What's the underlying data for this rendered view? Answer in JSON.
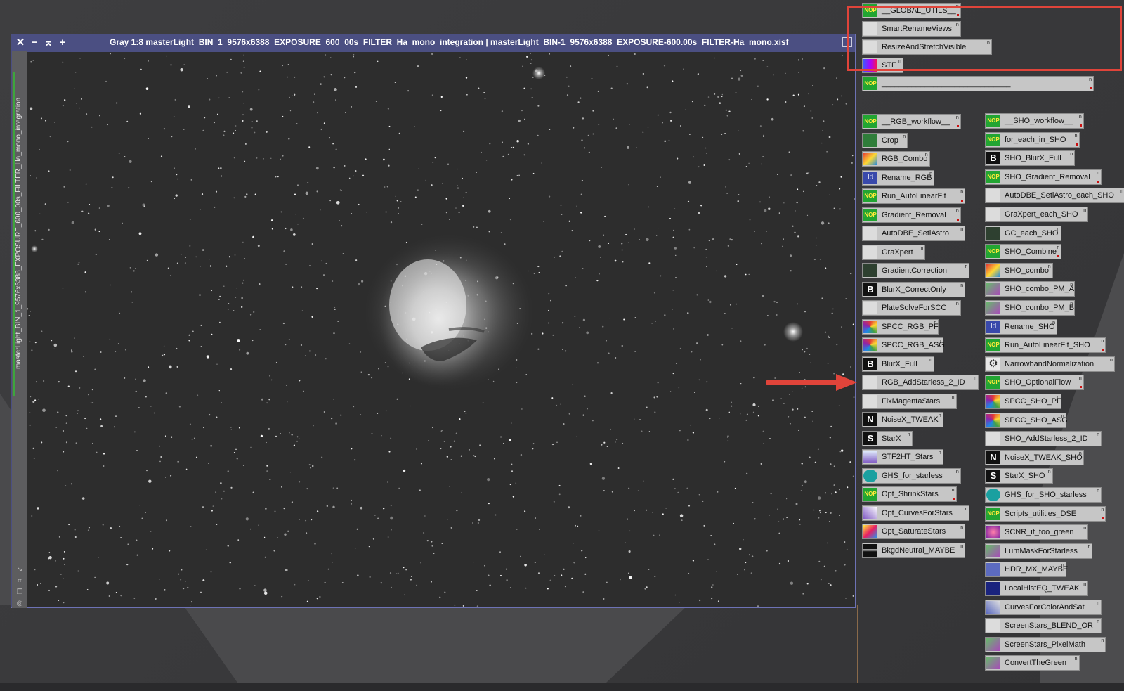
{
  "window": {
    "title": "Gray 1:8 masterLight_BIN_1_9576x6388_EXPOSURE_600_00s_FILTER_Ha_mono_integration | masterLight_BIN-1_9576x6388_EXPOSURE-600.00s_FILTER-Ha_mono.xisf",
    "side_label": "masterLight_BIN_1_9576x6388_EXPOSURE_600_00s_FILTER_Ha_mono_integration",
    "buttons": {
      "close": "✕",
      "minimize": "−",
      "shade": "⌅",
      "add": "+"
    }
  },
  "top_icons": [
    {
      "label": "__GLOBAL_UTILS__",
      "tag": "n",
      "icon": "nop"
    },
    {
      "label": "SmartRenameViews",
      "tag": "n",
      "icon": "script"
    },
    {
      "label": "ResizeAndStretchVisible",
      "tag": "n",
      "icon": "script"
    },
    {
      "label": "STF",
      "tag": "n",
      "icon": "stf"
    },
    {
      "label": "______________________________",
      "tag": "n",
      "icon": "nop"
    }
  ],
  "rgb_icons": [
    {
      "label": "__RGB_workflow__",
      "tag": "n",
      "icon": "nop"
    },
    {
      "label": "Crop",
      "tag": "n",
      "icon": "crop"
    },
    {
      "label": "RGB_Combo",
      "tag": "n",
      "icon": "rgb"
    },
    {
      "label": "Rename_RGB",
      "tag": "n",
      "icon": "rename"
    },
    {
      "label": "Run_AutoLinearFit",
      "tag": "n",
      "icon": "nop"
    },
    {
      "label": "Gradient_Removal",
      "tag": "n",
      "icon": "nop"
    },
    {
      "label": "AutoDBE_SetiAstro",
      "tag": "n",
      "icon": "script"
    },
    {
      "label": "GraXpert",
      "tag": "n",
      "icon": "script"
    },
    {
      "label": "GradientCorrection",
      "tag": "n",
      "icon": "grad"
    },
    {
      "label": "BlurX_CorrectOnly",
      "tag": "n",
      "icon": "letter",
      "letter": "B"
    },
    {
      "label": "PlateSolveForSCC",
      "tag": "n",
      "icon": "script"
    },
    {
      "label": "SPCC_RGB_PF",
      "tag": "n",
      "icon": "spcc"
    },
    {
      "label": "SPCC_RGB_ASG",
      "tag": "n",
      "icon": "spcc"
    },
    {
      "label": "BlurX_Full",
      "tag": "n",
      "icon": "letter",
      "letter": "B"
    },
    {
      "label": "RGB_AddStarless_2_ID",
      "tag": "n",
      "icon": "script"
    },
    {
      "label": "FixMagentaStars",
      "tag": "n",
      "icon": "script"
    },
    {
      "label": "NoiseX_TWEAK",
      "tag": "n",
      "icon": "letter",
      "letter": "N"
    },
    {
      "label": "StarX",
      "tag": "n",
      "icon": "letter",
      "letter": "S"
    },
    {
      "label": "STF2HT_Stars",
      "tag": "n",
      "icon": "stf2"
    },
    {
      "label": "GHS_for_starless",
      "tag": "n",
      "icon": "ghs"
    },
    {
      "label": "Opt_ShrinkStars",
      "tag": "n",
      "icon": "nop"
    },
    {
      "label": "Opt_CurvesForStars",
      "tag": "n",
      "icon": "curves"
    },
    {
      "label": "Opt_SaturateStars",
      "tag": "n",
      "icon": "sat"
    },
    {
      "label": "BkgdNeutral_MAYBE",
      "tag": "n",
      "icon": "bkg"
    }
  ],
  "sho_icons": [
    {
      "label": "__SHO_workflow__",
      "tag": "n",
      "icon": "nop"
    },
    {
      "label": "for_each_in_SHO",
      "tag": "n",
      "icon": "nop"
    },
    {
      "label": "SHO_BlurX_Full",
      "tag": "n",
      "icon": "letter",
      "letter": "B"
    },
    {
      "label": "SHO_Gradient_Removal",
      "tag": "n",
      "icon": "nop"
    },
    {
      "label": "AutoDBE_SetiAstro_each_SHO",
      "tag": "n",
      "icon": "script"
    },
    {
      "label": "GraXpert_each_SHO",
      "tag": "n",
      "icon": "script"
    },
    {
      "label": "GC_each_SHO",
      "tag": "n",
      "icon": "grad"
    },
    {
      "label": "SHO_Combine",
      "tag": "n",
      "icon": "nop"
    },
    {
      "label": "SHO_combo",
      "tag": "n",
      "icon": "rgb"
    },
    {
      "label": "SHO_combo_PM_A",
      "tag": "n",
      "icon": "pm"
    },
    {
      "label": "SHO_combo_PM_B",
      "tag": "n",
      "icon": "pm"
    },
    {
      "label": "Rename_SHO",
      "tag": "n",
      "icon": "rename"
    },
    {
      "label": "Run_AutoLinearFit_SHO",
      "tag": "n",
      "icon": "nop"
    },
    {
      "label": "NarrowbandNormalization",
      "tag": "n",
      "icon": "gear"
    },
    {
      "label": "SHO_OptionalFlow",
      "tag": "n",
      "icon": "nop"
    },
    {
      "label": "SPCC_SHO_PF",
      "tag": "n",
      "icon": "spcc"
    },
    {
      "label": "SPCC_SHO_ASG",
      "tag": "n",
      "icon": "spcc"
    },
    {
      "label": "SHO_AddStarless_2_ID",
      "tag": "n",
      "icon": "script"
    },
    {
      "label": "NoiseX_TWEAK_SHO",
      "tag": "n",
      "icon": "letter",
      "letter": "N"
    },
    {
      "label": "StarX_SHO",
      "tag": "n",
      "icon": "letter",
      "letter": "S"
    },
    {
      "label": "GHS_for_SHO_starless",
      "tag": "n",
      "icon": "ghs"
    },
    {
      "label": "Scripts_utilities_DSE",
      "tag": "n",
      "icon": "nop"
    },
    {
      "label": "SCNR_if_too_green",
      "tag": "n",
      "icon": "scnr"
    },
    {
      "label": "LumMaskForStarless",
      "tag": "n",
      "icon": "pm"
    },
    {
      "label": "HDR_MX_MAYBE",
      "tag": "n",
      "icon": "hdr"
    },
    {
      "label": "LocalHistEQ_TWEAK",
      "tag": "n",
      "icon": "lhe"
    },
    {
      "label": "CurvesForColorAndSat",
      "tag": "n",
      "icon": "cfc"
    },
    {
      "label": "ScreenStars_BLEND_OR",
      "tag": "n",
      "icon": "script"
    },
    {
      "label": "ScreenStars_PixelMath",
      "tag": "n",
      "icon": "pm"
    },
    {
      "label": "ConvertTheGreen",
      "tag": "n",
      "icon": "pm"
    }
  ],
  "colors": {
    "annotation": "#e0443a",
    "titlebar": "#4b4f82",
    "nop_green": "#22a532"
  }
}
